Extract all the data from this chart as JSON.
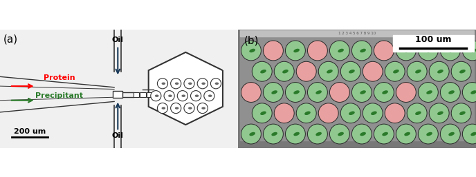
{
  "fig_width": 6.88,
  "fig_height": 2.57,
  "dpi": 100,
  "bg_color_a": "#e8e8e8",
  "bg_color_b": "#808080",
  "label_a": "(a)",
  "label_b": "(b)",
  "scale_bar_a": "200 um",
  "scale_bar_b": "100 um",
  "oil_label": "Oil",
  "protein_label": "Protein",
  "precipitant_label": "Precipitant",
  "green_color": "#90c890",
  "pink_color": "#e8a0a0",
  "dark_green": "#2a7a2a",
  "border_color": "#222222",
  "arrow_color": "#1a3a5a"
}
